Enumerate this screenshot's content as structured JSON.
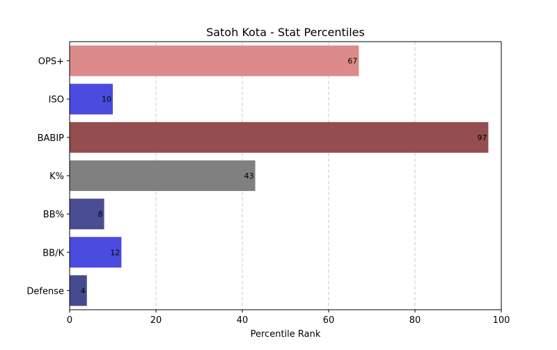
{
  "chart_data": {
    "type": "bar",
    "orientation": "horizontal",
    "title": "Satoh Kota - Stat Percentiles",
    "xlabel": "Percentile Rank",
    "ylabel": "",
    "xlim": [
      0,
      100
    ],
    "xticks": [
      0,
      20,
      40,
      60,
      80,
      100
    ],
    "grid": "x-dashed",
    "categories": [
      "OPS+",
      "ISO",
      "BABIP",
      "K%",
      "BB%",
      "BB/K",
      "Defense"
    ],
    "values": [
      67,
      10,
      97,
      43,
      8,
      12,
      4
    ],
    "colors": [
      "#dd8a8a",
      "#4b4bdf",
      "#944e4f",
      "#808080",
      "#4a4d93",
      "#4b4bdf",
      "#464a8f"
    ]
  }
}
